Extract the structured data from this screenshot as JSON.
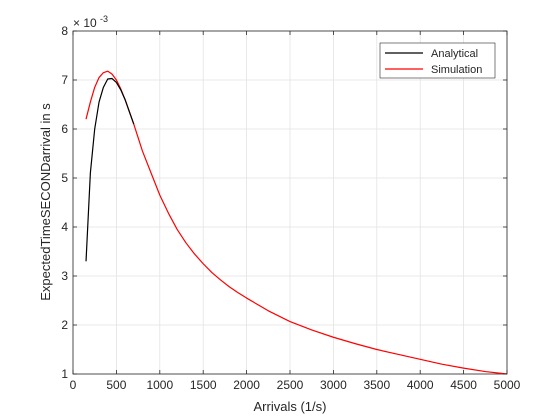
{
  "chart_data": {
    "type": "line",
    "title": "",
    "xlabel": "Arrivals (1/s)",
    "ylabel": "ExpectedTimeSECONDarrival in s",
    "y_multiplier_label": "× 10",
    "y_multiplier_exponent": "-3",
    "xlim": [
      0,
      5000
    ],
    "ylim": [
      1,
      8
    ],
    "x_ticks": [
      0,
      500,
      1000,
      1500,
      2000,
      2500,
      3000,
      3500,
      4000,
      4500,
      5000
    ],
    "y_ticks": [
      1,
      2,
      3,
      4,
      5,
      6,
      7,
      8
    ],
    "grid": true,
    "legend_position": "top-right",
    "series": [
      {
        "name": "Analytical",
        "color": "#000000",
        "x": [
          150,
          200,
          250,
          300,
          350,
          400,
          450,
          500,
          550,
          600,
          700
        ],
        "y": [
          3.3,
          5.1,
          6.0,
          6.55,
          6.85,
          7.02,
          7.03,
          6.95,
          6.8,
          6.6,
          6.1
        ]
      },
      {
        "name": "Simulation",
        "color": "#ff0000",
        "x": [
          150,
          200,
          250,
          300,
          350,
          400,
          450,
          500,
          550,
          600,
          700,
          800,
          900,
          1000,
          1100,
          1200,
          1300,
          1400,
          1500,
          1600,
          1700,
          1800,
          1900,
          2000,
          2250,
          2500,
          2750,
          3000,
          3250,
          3500,
          3750,
          4000,
          4250,
          4500,
          4750,
          5000
        ],
        "y": [
          6.2,
          6.55,
          6.85,
          7.05,
          7.15,
          7.18,
          7.12,
          7.0,
          6.82,
          6.6,
          6.1,
          5.55,
          5.1,
          4.65,
          4.28,
          3.95,
          3.68,
          3.45,
          3.25,
          3.07,
          2.92,
          2.78,
          2.66,
          2.55,
          2.29,
          2.07,
          1.9,
          1.75,
          1.62,
          1.5,
          1.4,
          1.3,
          1.2,
          1.12,
          1.05,
          1.0
        ]
      }
    ]
  }
}
